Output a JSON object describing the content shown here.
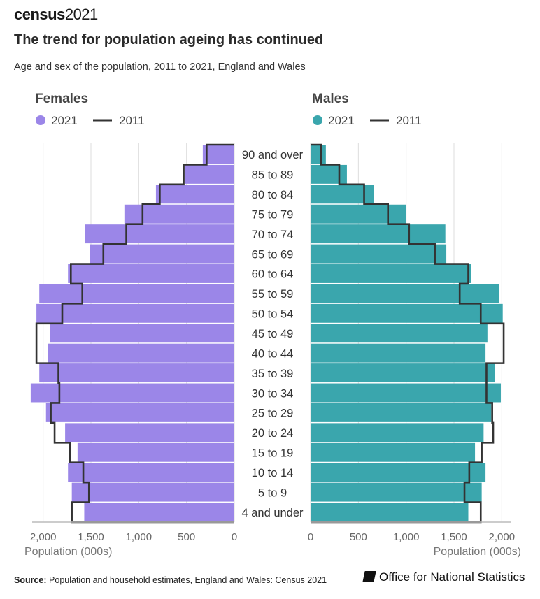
{
  "logo": {
    "brand": "census",
    "year": "2021"
  },
  "title": "The trend for population ageing has continued",
  "subtitle": "Age and sex of the population, 2011 to 2021, England and Wales",
  "source": {
    "label": "Source:",
    "text": "Population and household estimates, England and Wales: Census 2021"
  },
  "watermark": "Office for National Statistics",
  "colors": {
    "female": "#9b86e8",
    "male": "#3aa6ad",
    "outline2011": "#333333",
    "grid": "#dddddd",
    "axis": "#bbbbbb"
  },
  "chart_data": [
    {
      "type": "bar",
      "orientation": "horizontal",
      "panel": "left",
      "title": "Females",
      "legend": [
        "2021",
        "2011"
      ],
      "xlabel": "Population (000s)",
      "xlim": [
        0,
        2100
      ],
      "xticks": [
        "2,000",
        "1,500",
        "1,000",
        "500",
        "0"
      ],
      "xtick_values": [
        2000,
        1500,
        1000,
        500,
        0
      ],
      "categories": [
        "4 and under",
        "5 to 9",
        "10 to 14",
        "15 to 19",
        "20 to 24",
        "25 to 29",
        "30 to 34",
        "35 to 39",
        "40 to 44",
        "45 to 49",
        "50 to 54",
        "55 to 59",
        "60 to 64",
        "65 to 69",
        "70 to 74",
        "75 to 79",
        "80 to 84",
        "85 to 89",
        "90 and over"
      ],
      "series": [
        {
          "name": "2021",
          "values": [
            1570,
            1700,
            1740,
            1640,
            1770,
            1970,
            2130,
            2040,
            1950,
            1930,
            2070,
            2040,
            1740,
            1510,
            1560,
            1150,
            820,
            520,
            330
          ]
        },
        {
          "name": "2011",
          "values": [
            1700,
            1520,
            1580,
            1720,
            1880,
            1920,
            1830,
            1840,
            2070,
            2070,
            1800,
            1590,
            1710,
            1370,
            1130,
            960,
            780,
            530,
            290
          ]
        }
      ]
    },
    {
      "type": "bar",
      "orientation": "horizontal",
      "panel": "right",
      "title": "Males",
      "legend": [
        "2021",
        "2011"
      ],
      "xlabel": "Population (000s)",
      "xlim": [
        0,
        2100
      ],
      "xticks": [
        "0",
        "500",
        "1,000",
        "1,500",
        "2,000"
      ],
      "xtick_values": [
        0,
        500,
        1000,
        1500,
        2000
      ],
      "categories": [
        "4 and under",
        "5 to 9",
        "10 to 14",
        "15 to 19",
        "20 to 24",
        "25 to 29",
        "30 to 34",
        "35 to 39",
        "40 to 44",
        "45 to 49",
        "50 to 54",
        "55 to 59",
        "60 to 64",
        "65 to 69",
        "70 to 74",
        "75 to 79",
        "80 to 84",
        "85 to 89",
        "90 and over"
      ],
      "series": [
        {
          "name": "2021",
          "values": [
            1650,
            1790,
            1830,
            1720,
            1810,
            1890,
            1990,
            1930,
            1830,
            1850,
            2010,
            1970,
            1680,
            1420,
            1410,
            1000,
            660,
            380,
            160
          ]
        },
        {
          "name": "2011",
          "values": [
            1780,
            1610,
            1660,
            1790,
            1910,
            1900,
            1840,
            1840,
            2020,
            2020,
            1780,
            1560,
            1650,
            1300,
            1030,
            810,
            560,
            300,
            110
          ]
        }
      ]
    }
  ]
}
